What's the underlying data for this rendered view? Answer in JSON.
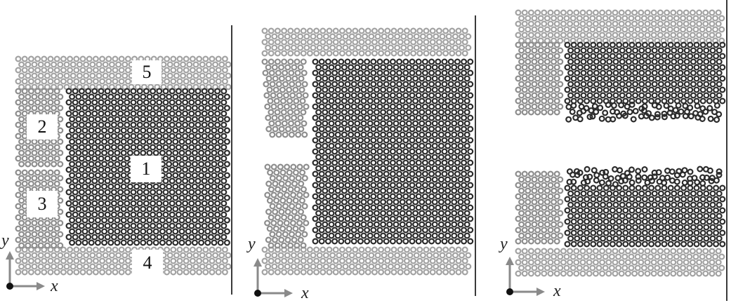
{
  "figure": {
    "panels": [
      {
        "name": "initial-configuration",
        "region_labels": [
          "1",
          "2",
          "3",
          "4",
          "5"
        ],
        "axes": {
          "x_label": "x",
          "y_label": "y"
        }
      },
      {
        "name": "intermediate-configuration",
        "axes": {
          "x_label": "x",
          "y_label": "y"
        }
      },
      {
        "name": "fractured-configuration",
        "axes": {
          "x_label": "x",
          "y_label": "y"
        }
      }
    ],
    "colors": {
      "region_1_particles": "#2b2b2b",
      "region_2_3_particles": "#8d8d8d",
      "region_4_5_particles": "#a2a2a2",
      "boundary_wall": "#3a3a3a",
      "axis_arrow": "#8a8a8a",
      "origin_dot": "#111111"
    },
    "icons": [
      "hex-particle-lattice",
      "axis-arrow-icon",
      "origin-dot-icon"
    ]
  }
}
